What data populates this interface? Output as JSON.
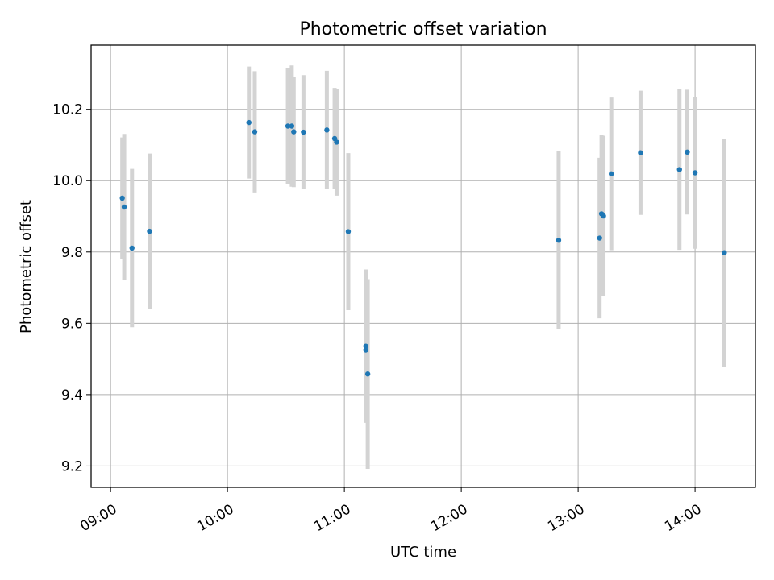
{
  "chart_data": {
    "type": "scatter",
    "title": "Photometric offset variation",
    "xlabel": "UTC time",
    "ylabel": "Photometric offset",
    "xlim": [
      "08:50",
      "14:31"
    ],
    "ylim": [
      9.14,
      10.38
    ],
    "x_ticks": [
      "09:00",
      "10:00",
      "11:00",
      "12:00",
      "13:00",
      "14:00"
    ],
    "y_ticks": [
      "9.2",
      "9.4",
      "9.6",
      "9.8",
      "10.0",
      "10.2"
    ],
    "grid": true,
    "colors": {
      "points": "#1f77b4",
      "errorbars": "#d3d3d3",
      "grid": "#b0b0b0"
    },
    "points": [
      {
        "t": "09:06",
        "y": 9.951,
        "err": 0.17
      },
      {
        "t": "09:07",
        "y": 9.926,
        "err": 0.205
      },
      {
        "t": "09:11",
        "y": 9.811,
        "err": 0.222
      },
      {
        "t": "09:20",
        "y": 9.858,
        "err": 0.218
      },
      {
        "t": "10:11",
        "y": 10.163,
        "err": 0.157
      },
      {
        "t": "10:14",
        "y": 10.137,
        "err": 0.17
      },
      {
        "t": "10:31",
        "y": 10.153,
        "err": 0.162
      },
      {
        "t": "10:33",
        "y": 10.153,
        "err": 0.17
      },
      {
        "t": "10:34",
        "y": 10.137,
        "err": 0.155
      },
      {
        "t": "10:39",
        "y": 10.136,
        "err": 0.16
      },
      {
        "t": "10:51",
        "y": 10.142,
        "err": 0.166
      },
      {
        "t": "10:55",
        "y": 10.118,
        "err": 0.142
      },
      {
        "t": "10:56",
        "y": 10.108,
        "err": 0.15
      },
      {
        "t": "11:02",
        "y": 9.857,
        "err": 0.22
      },
      {
        "t": "11:11",
        "y": 9.536,
        "err": 0.215
      },
      {
        "t": "11:11",
        "y": 9.525,
        "err": 0.2
      },
      {
        "t": "11:12",
        "y": 9.458,
        "err": 0.266
      },
      {
        "t": "12:50",
        "y": 9.833,
        "err": 0.25
      },
      {
        "t": "13:11",
        "y": 9.839,
        "err": 0.225
      },
      {
        "t": "13:12",
        "y": 9.907,
        "err": 0.22
      },
      {
        "t": "13:13",
        "y": 9.901,
        "err": 0.225
      },
      {
        "t": "13:17",
        "y": 10.019,
        "err": 0.214
      },
      {
        "t": "13:32",
        "y": 10.078,
        "err": 0.174
      },
      {
        "t": "13:52",
        "y": 10.031,
        "err": 0.225
      },
      {
        "t": "13:56",
        "y": 10.08,
        "err": 0.175
      },
      {
        "t": "14:00",
        "y": 10.022,
        "err": 0.213
      },
      {
        "t": "14:15",
        "y": 9.798,
        "err": 0.32
      }
    ]
  }
}
